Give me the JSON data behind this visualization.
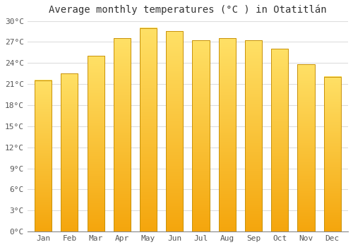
{
  "title": "Average monthly temperatures (°C ) in Otatitlán",
  "months": [
    "Jan",
    "Feb",
    "Mar",
    "Apr",
    "May",
    "Jun",
    "Jul",
    "Aug",
    "Sep",
    "Oct",
    "Nov",
    "Dec"
  ],
  "values": [
    21.5,
    22.5,
    25.0,
    27.5,
    29.0,
    28.5,
    27.2,
    27.5,
    27.2,
    26.0,
    23.8,
    22.0
  ],
  "bar_color_top": "#FFE066",
  "bar_color_bottom": "#F5A800",
  "bar_edge_color": "#C8920A",
  "ylim": [
    0,
    30
  ],
  "ytick_step": 3,
  "background_color": "#FFFFFF",
  "grid_color": "#DDDDDD",
  "title_fontsize": 10,
  "tick_fontsize": 8,
  "font_family": "monospace",
  "bar_width": 0.65
}
